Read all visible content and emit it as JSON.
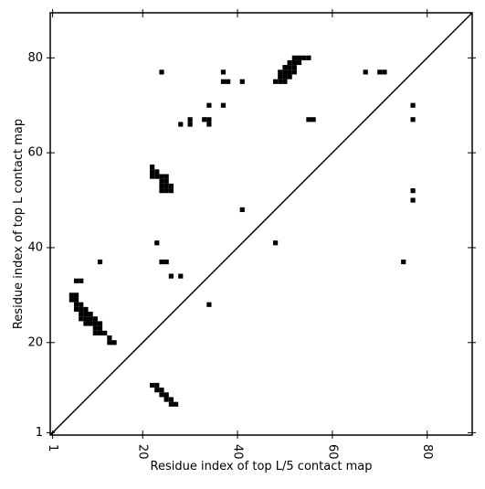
{
  "chart_data": {
    "type": "scatter",
    "xlabel": "Residue index of top L/5 contact map",
    "ylabel": "Residue index of top L contact map",
    "xlim": [
      0.5,
      89.5
    ],
    "ylim": [
      0.5,
      89.5
    ],
    "xticks": [
      1,
      20,
      40,
      60,
      80
    ],
    "yticks": [
      1,
      20,
      40,
      60,
      80
    ],
    "color": "#000000",
    "diagonal": true,
    "x": [
      24,
      37,
      41,
      37,
      38,
      34,
      37,
      28,
      30,
      30,
      33,
      34,
      34,
      22,
      22,
      23,
      22,
      23,
      24,
      25,
      24,
      25,
      24,
      25,
      26,
      24,
      25,
      26,
      41,
      23,
      48,
      11,
      24,
      25,
      26,
      28,
      6,
      7,
      5,
      6,
      5,
      6,
      6,
      7,
      6,
      7,
      8,
      7,
      8,
      9,
      7,
      8,
      9,
      10,
      8,
      9,
      10,
      11,
      10,
      11,
      10,
      11,
      12,
      13,
      13,
      14,
      34,
      48,
      49,
      50,
      49,
      50,
      51,
      49,
      50,
      51,
      52,
      50,
      51,
      52,
      51,
      52,
      53,
      52,
      53,
      54,
      55,
      67,
      70,
      71,
      77,
      77,
      55,
      56,
      77,
      77,
      75,
      22,
      23,
      23,
      24,
      24,
      25,
      25,
      26,
      26,
      27
    ],
    "values": [
      77,
      77,
      75,
      75,
      75,
      70,
      70,
      66,
      67,
      66,
      67,
      67,
      66,
      57,
      56,
      56,
      55,
      55,
      55,
      55,
      54,
      54,
      53,
      53,
      53,
      52,
      52,
      52,
      48,
      41,
      41,
      37,
      37,
      37,
      34,
      34,
      33,
      33,
      30,
      30,
      29,
      29,
      28,
      28,
      27,
      27,
      27,
      26,
      26,
      26,
      25,
      25,
      25,
      25,
      24,
      24,
      24,
      24,
      23,
      23,
      22,
      22,
      22,
      21,
      20,
      20,
      28,
      75,
      75,
      75,
      76,
      76,
      76,
      77,
      77,
      77,
      77,
      78,
      78,
      78,
      79,
      79,
      79,
      80,
      80,
      80,
      80,
      77,
      77,
      77,
      70,
      67,
      67,
      67,
      52,
      50,
      37,
      11,
      11,
      10,
      10,
      9,
      9,
      8,
      8,
      7,
      7
    ]
  }
}
